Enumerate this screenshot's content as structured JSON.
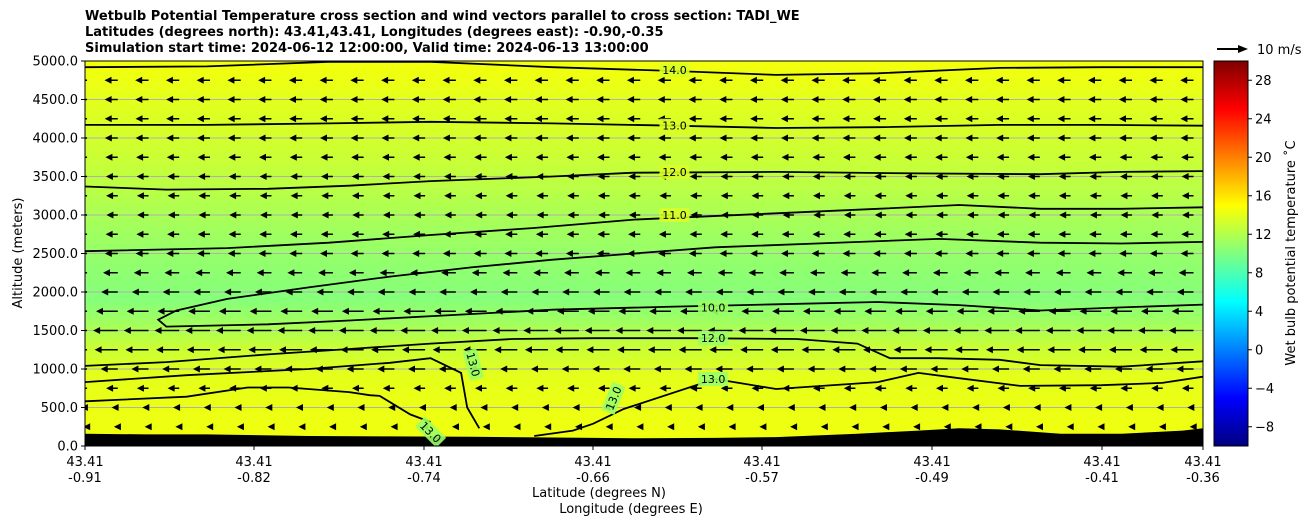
{
  "chart_data": {
    "type": "heatmap",
    "title_lines": [
      "Wetbulb Potential Temperature cross section and wind vectors parallel to cross section: TADI_WE",
      "Latitudes (degrees north): 43.41,43.41, Longitudes (degrees east): -0.90,-0.35",
      "Simulation start time: 2024-06-12 12:00:00, Valid time: 2024-06-13 13:00:00"
    ],
    "ylabel": "Altitude (meters)",
    "xlabel_lat": "Latitude (degrees N)",
    "xlabel_lon": "Longitude (degrees E)",
    "ylim": [
      0,
      5000
    ],
    "y_ticks": [
      "0.0",
      "500.0",
      "1000.0",
      "1500.0",
      "2000.0",
      "2500.0",
      "3000.0",
      "3500.0",
      "4000.0",
      "4500.0",
      "5000.0"
    ],
    "x_ticks_lat": [
      "43.41",
      "43.41",
      "43.41",
      "43.41",
      "43.41",
      "43.41",
      "43.41",
      "43.41"
    ],
    "x_ticks_lon": [
      "-0.91",
      "-0.82",
      "-0.74",
      "-0.66",
      "-0.57",
      "-0.49",
      "-0.41",
      "-0.36"
    ],
    "lon_range": [
      -0.91,
      -0.36
    ],
    "colorbar": {
      "label": "Wet bulb potential temperature ˚C",
      "range": [
        -10,
        30
      ],
      "ticks": [
        "−8",
        "−4",
        "0",
        "4",
        "8",
        "12",
        "16",
        "20",
        "24",
        "28"
      ],
      "colormap": "jet"
    },
    "quiver_key": {
      "label": "10 m/s"
    },
    "contour_labels": [
      "14.0",
      "13.0",
      "12.0",
      "11.0",
      "10.0",
      "12.0",
      "13.0",
      "13.0",
      "13.0",
      "13.0"
    ],
    "contours": [
      {
        "level": 14,
        "points": [
          [
            -0.91,
            4920
          ],
          [
            -0.85,
            4930
          ],
          [
            -0.79,
            4990
          ],
          [
            -0.74,
            4990
          ],
          [
            -0.68,
            4920
          ],
          [
            -0.62,
            4870
          ],
          [
            -0.57,
            4820
          ],
          [
            -0.52,
            4840
          ],
          [
            -0.46,
            4910
          ],
          [
            -0.41,
            4920
          ],
          [
            -0.36,
            4920
          ]
        ]
      },
      {
        "level": 13,
        "points": [
          [
            -0.91,
            4170
          ],
          [
            -0.85,
            4170
          ],
          [
            -0.79,
            4190
          ],
          [
            -0.74,
            4210
          ],
          [
            -0.68,
            4190
          ],
          [
            -0.62,
            4160
          ],
          [
            -0.57,
            4130
          ],
          [
            -0.52,
            4140
          ],
          [
            -0.46,
            4170
          ],
          [
            -0.41,
            4170
          ],
          [
            -0.36,
            4160
          ]
        ]
      },
      {
        "level": 12,
        "points": [
          [
            -0.91,
            3370
          ],
          [
            -0.87,
            3330
          ],
          [
            -0.82,
            3340
          ],
          [
            -0.78,
            3380
          ],
          [
            -0.74,
            3440
          ],
          [
            -0.68,
            3500
          ],
          [
            -0.64,
            3550
          ],
          [
            -0.57,
            3560
          ],
          [
            -0.5,
            3540
          ],
          [
            -0.44,
            3530
          ],
          [
            -0.4,
            3560
          ],
          [
            -0.36,
            3570
          ]
        ]
      },
      {
        "level": 11,
        "points": [
          [
            -0.91,
            2530
          ],
          [
            -0.84,
            2570
          ],
          [
            -0.79,
            2640
          ],
          [
            -0.74,
            2740
          ],
          [
            -0.69,
            2830
          ],
          [
            -0.64,
            2940
          ],
          [
            -0.58,
            3010
          ],
          [
            -0.52,
            3080
          ],
          [
            -0.48,
            3130
          ],
          [
            -0.44,
            3080
          ],
          [
            -0.4,
            3080
          ],
          [
            -0.36,
            3100
          ]
        ]
      },
      {
        "level": 10,
        "points": [
          [
            -0.355,
            1840
          ],
          [
            -0.4,
            1800
          ],
          [
            -0.44,
            1760
          ],
          [
            -0.48,
            1830
          ],
          [
            -0.52,
            1870
          ],
          [
            -0.57,
            1840
          ],
          [
            -0.62,
            1810
          ],
          [
            -0.68,
            1770
          ],
          [
            -0.73,
            1700
          ],
          [
            -0.78,
            1630
          ],
          [
            -0.82,
            1580
          ],
          [
            -0.87,
            1550
          ],
          [
            -0.874,
            1640
          ],
          [
            -0.865,
            1760
          ],
          [
            -0.84,
            1910
          ],
          [
            -0.8,
            2060
          ],
          [
            -0.76,
            2200
          ],
          [
            -0.72,
            2320
          ],
          [
            -0.68,
            2420
          ],
          [
            -0.64,
            2500
          ],
          [
            -0.6,
            2580
          ],
          [
            -0.55,
            2630
          ],
          [
            -0.49,
            2690
          ],
          [
            -0.44,
            2640
          ],
          [
            -0.4,
            2630
          ],
          [
            -0.36,
            2650
          ]
        ]
      },
      {
        "level": 12,
        "points": [
          [
            -0.91,
            1040
          ],
          [
            -0.87,
            1090
          ],
          [
            -0.82,
            1190
          ],
          [
            -0.78,
            1260
          ],
          [
            -0.74,
            1330
          ],
          [
            -0.7,
            1390
          ],
          [
            -0.66,
            1400
          ],
          [
            -0.61,
            1400
          ],
          [
            -0.56,
            1390
          ],
          [
            -0.53,
            1330
          ],
          [
            -0.514,
            1140
          ],
          [
            -0.49,
            1140
          ],
          [
            -0.46,
            1120
          ],
          [
            -0.44,
            1050
          ],
          [
            -0.4,
            1030
          ],
          [
            -0.36,
            1100
          ]
        ]
      },
      {
        "level": 13,
        "points": [
          [
            -0.91,
            830
          ],
          [
            -0.86,
            920
          ],
          [
            -0.8,
            1000
          ],
          [
            -0.76,
            1080
          ],
          [
            -0.74,
            1140
          ],
          [
            -0.725,
            950
          ],
          [
            -0.722,
            500
          ],
          [
            -0.716,
            230
          ]
        ]
      },
      {
        "level": 13,
        "points": [
          [
            -0.91,
            580
          ],
          [
            -0.86,
            640
          ],
          [
            -0.83,
            760
          ],
          [
            -0.81,
            760
          ],
          [
            -0.78,
            700
          ],
          [
            -0.77,
            660
          ],
          [
            -0.765,
            650
          ],
          [
            -0.75,
            410
          ],
          [
            -0.74,
            310
          ]
        ]
      },
      {
        "level": 13,
        "points": [
          [
            -0.689,
            130
          ],
          [
            -0.67,
            200
          ],
          [
            -0.66,
            290
          ],
          [
            -0.645,
            480
          ],
          [
            -0.6,
            870
          ],
          [
            -0.57,
            740
          ],
          [
            -0.52,
            830
          ],
          [
            -0.5,
            950
          ],
          [
            -0.48,
            880
          ],
          [
            -0.45,
            780
          ],
          [
            -0.41,
            790
          ],
          [
            -0.38,
            820
          ],
          [
            -0.36,
            900
          ]
        ]
      }
    ],
    "terrain_m": [
      [
        -0.91,
        160
      ],
      [
        -0.88,
        150
      ],
      [
        -0.85,
        150
      ],
      [
        -0.8,
        130
      ],
      [
        -0.76,
        125
      ],
      [
        -0.72,
        120
      ],
      [
        -0.68,
        110
      ],
      [
        -0.64,
        100
      ],
      [
        -0.6,
        105
      ],
      [
        -0.57,
        115
      ],
      [
        -0.53,
        160
      ],
      [
        -0.5,
        200
      ],
      [
        -0.48,
        230
      ],
      [
        -0.46,
        215
      ],
      [
        -0.43,
        160
      ],
      [
        -0.4,
        160
      ],
      [
        -0.37,
        200
      ],
      [
        -0.36,
        230
      ]
    ],
    "temperature_profile_c": [
      {
        "z": 0,
        "t": 14.5
      },
      {
        "z": 400,
        "t": 14.3
      },
      {
        "z": 900,
        "t": 14.0
      },
      {
        "z": 1300,
        "t": 12.8
      },
      {
        "z": 1600,
        "t": 11.3
      },
      {
        "z": 1900,
        "t": 10.2
      },
      {
        "z": 2300,
        "t": 10.6
      },
      {
        "z": 2800,
        "t": 11.3
      },
      {
        "z": 3300,
        "t": 12.2
      },
      {
        "z": 3800,
        "t": 13.0
      },
      {
        "z": 4400,
        "t": 13.8
      },
      {
        "z": 5000,
        "t": 14.6
      }
    ],
    "wind_profile_ms": [
      {
        "z": 0,
        "u": 0.2
      },
      {
        "z": 500,
        "u": -1.6
      },
      {
        "z": 1000,
        "u": -5.8
      },
      {
        "z": 1300,
        "u": -8.6
      },
      {
        "z": 1600,
        "u": -8.8
      },
      {
        "z": 2000,
        "u": -5.6
      },
      {
        "z": 2500,
        "u": -4.2
      },
      {
        "z": 3000,
        "u": -3.6
      },
      {
        "z": 3500,
        "u": -3.8
      },
      {
        "z": 4000,
        "u": -4.2
      },
      {
        "z": 5000,
        "u": -4.4
      }
    ],
    "grid": true
  }
}
